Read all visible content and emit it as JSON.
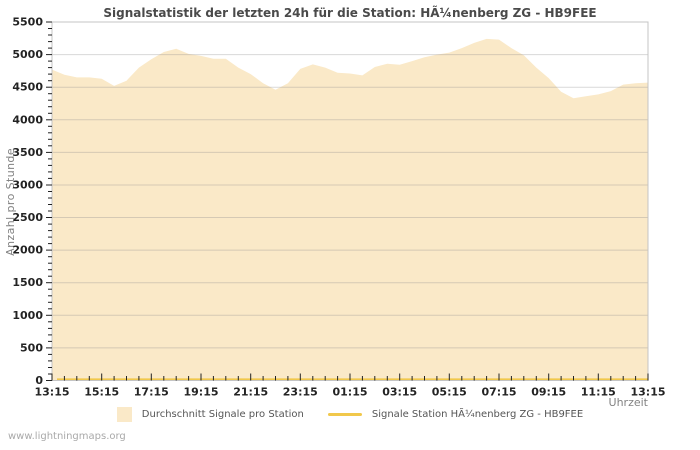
{
  "title": "Signalstatistik der letzten 24h für die Station: HÃ¼nenberg ZG - HB9FEE",
  "y_axis_title": "Anzahl pro Stunde",
  "x_axis_title": "Uhrzeit",
  "watermark": "www.lightningmaps.org",
  "legend": {
    "position": "bottom",
    "items": [
      {
        "label": "Durchschnitt Signale pro Station",
        "swatch": "area",
        "color": "#FAE9C8"
      },
      {
        "label": "Signale Station HÃ¼nenberg ZG - HB9FEE",
        "swatch": "line",
        "color": "#F1C84B"
      }
    ]
  },
  "colors": {
    "background": "#FFFFFF",
    "plot_border": "#C4C4C4",
    "gridline": "#8F8F8F",
    "tick": "#222222",
    "area_fill": "#FAE9C8",
    "station_line": "#F1C84B",
    "title_text": "#4A4A4A",
    "axis_text": "#828282",
    "tick_text": "#232323",
    "legend_text": "#555555",
    "watermark_text": "#A9A9A9"
  },
  "chart_data": {
    "type": "area",
    "title": "Signalstatistik der letzten 24h für die Station: HÃ¼nenberg ZG - HB9FEE",
    "xlabel": "Uhrzeit",
    "ylabel": "Anzahl pro Stunde",
    "grid": true,
    "legend_position": "bottom",
    "ylim": [
      0,
      5500
    ],
    "y_tick_step": 500,
    "y_minor_tick_step": 100,
    "y_tick_labels": [
      "0",
      "500",
      "1000",
      "1500",
      "2000",
      "2500",
      "3000",
      "3500",
      "4000",
      "4500",
      "5000",
      "5500"
    ],
    "x_span_hours": 24,
    "x_tick_interval_hours": 2,
    "x_minor_tick_interval_hours": 0.5,
    "x_tick_labels": [
      "13:15",
      "15:15",
      "17:15",
      "19:15",
      "21:15",
      "23:15",
      "01:15",
      "03:15",
      "05:15",
      "07:15",
      "09:15",
      "11:15",
      "13:15"
    ],
    "series": [
      {
        "name": "Durchschnitt Signale pro Station",
        "type": "area",
        "color": "#FAE9C8",
        "x_step_hours": 0.5,
        "values": [
          4770,
          4690,
          4650,
          4650,
          4630,
          4520,
          4600,
          4800,
          4930,
          5040,
          5090,
          5010,
          4980,
          4935,
          4935,
          4800,
          4700,
          4560,
          4460,
          4560,
          4780,
          4850,
          4800,
          4720,
          4710,
          4680,
          4810,
          4860,
          4845,
          4900,
          4960,
          5000,
          5030,
          5100,
          5180,
          5240,
          5230,
          5100,
          4990,
          4800,
          4640,
          4430,
          4330,
          4360,
          4390,
          4440,
          4540,
          4560,
          4570
        ]
      },
      {
        "name": "Signale Station HÃ¼nenberg ZG - HB9FEE",
        "type": "line",
        "color": "#F1C84B",
        "constant_value": 0
      }
    ]
  }
}
